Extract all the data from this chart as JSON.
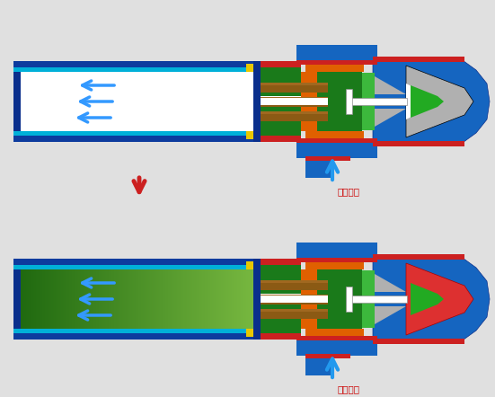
{
  "bg_color": "#e0e0e0",
  "arrow_label": "压缩空气",
  "colors": {
    "blue_dark": "#0a2f8c",
    "blue_mid": "#1455b5",
    "blue_bright": "#1565C0",
    "blue_outer": "#0d3b9e",
    "cyan": "#00b0d8",
    "cyan2": "#00c8e8",
    "green_dark": "#1a7a1a",
    "green_mid": "#2e8b2e",
    "green_bright": "#3cb83c",
    "green_nozzle": "#22aa22",
    "red_dark": "#aa0000",
    "red_mid": "#cc2020",
    "red_bright": "#dd3030",
    "orange": "#e06000",
    "orange2": "#f07000",
    "brown": "#7a4a10",
    "brown2": "#8b5a14",
    "brown_light": "#a06820",
    "gray": "#909090",
    "gray2": "#b0b0b0",
    "gray_light": "#c8c8c8",
    "white": "#ffffff",
    "yellow": "#e8c800",
    "black": "#000000"
  }
}
